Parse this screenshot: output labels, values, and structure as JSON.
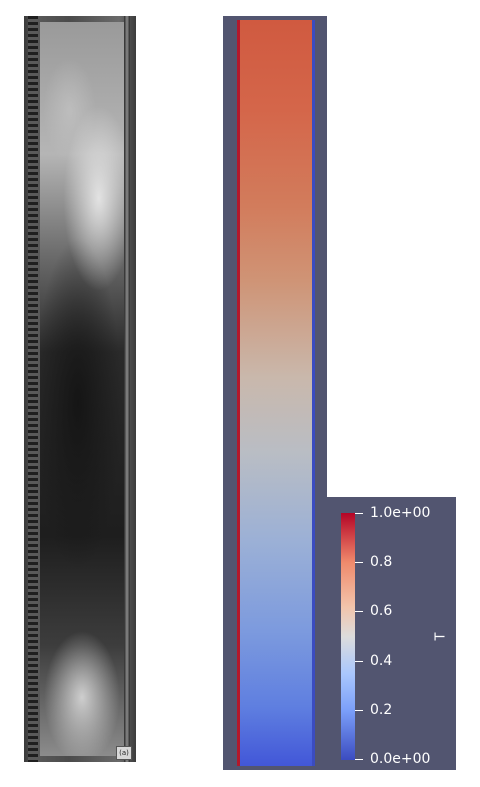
{
  "photo": {
    "corner_label": "(a)"
  },
  "colorbar": {
    "title": "T",
    "colormap": "cool-to-warm",
    "range": [
      0,
      1
    ],
    "ticks": [
      {
        "label": "1.0e+00",
        "value": 1.0
      },
      {
        "label": "0.8",
        "value": 0.8
      },
      {
        "label": "0.6",
        "value": 0.6
      },
      {
        "label": "0.4",
        "value": 0.4
      },
      {
        "label": "0.2",
        "value": 0.2
      },
      {
        "label": "0.0e+00",
        "value": 0.0
      }
    ]
  },
  "colors": {
    "background": "#525570",
    "hot": "#b40426",
    "cold": "#3b4cc0"
  }
}
